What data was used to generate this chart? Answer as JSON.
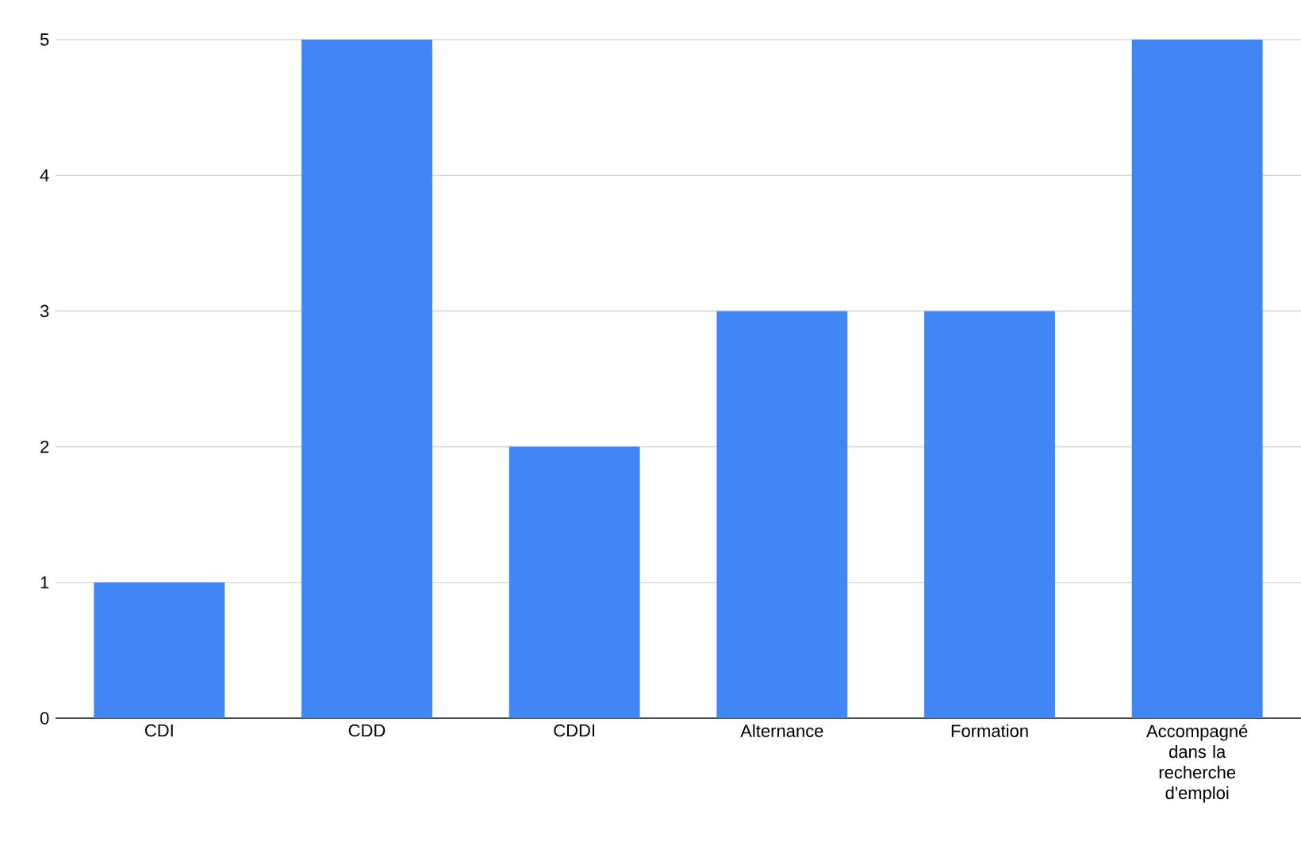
{
  "chart_data": {
    "type": "bar",
    "categories": [
      "CDI",
      "CDD",
      "CDDI",
      "Alternance",
      "Formation",
      "Accompagné dans la recherche d'emploi"
    ],
    "values": [
      1,
      5,
      2,
      3,
      3,
      5
    ],
    "color": "#4285f4",
    "ylim": [
      0,
      5
    ],
    "yticks": [
      0,
      1,
      2,
      3,
      4,
      5
    ],
    "grid": "y"
  }
}
